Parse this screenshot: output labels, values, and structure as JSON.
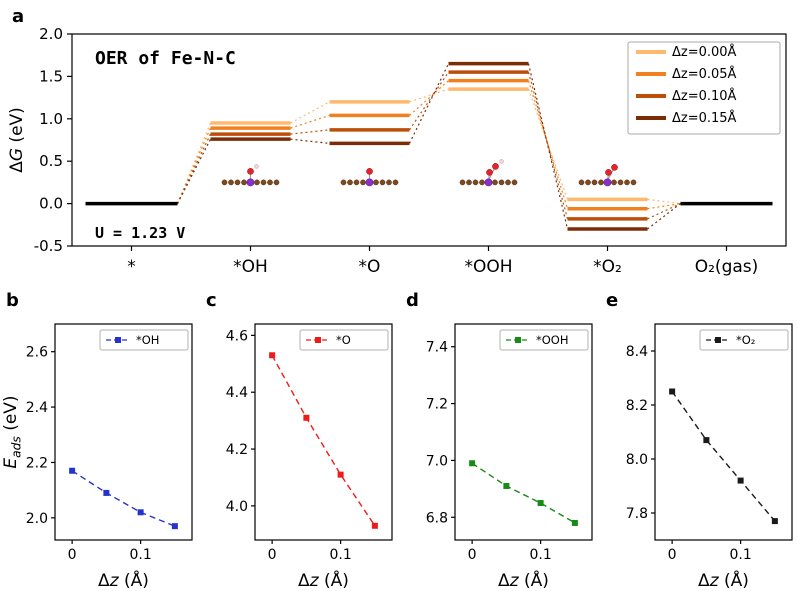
{
  "chart_data": [
    {
      "type": "step-diagram",
      "panel_label": "a",
      "title": "OER of Fe-N-C",
      "annotation": "U = 1.23 V",
      "ylabel_parts": [
        {
          "text": "Δ"
        },
        {
          "text": "G",
          "italic": true
        },
        {
          "text": " (eV)"
        }
      ],
      "ylim": [
        -0.5,
        2.0
      ],
      "yticks": [
        -0.5,
        0.0,
        0.5,
        1.0,
        1.5,
        2.0
      ],
      "ytick_labels": [
        "-0.5",
        "0.0",
        "0.5",
        "1.0",
        "1.5",
        "2.0"
      ],
      "categories": [
        "*",
        "*OH",
        "*O",
        "*OOH",
        "*O₂",
        "O₂(gas)"
      ],
      "endpoint_color": "#000000",
      "legend_position": "top-right",
      "series": [
        {
          "name": "Δz=0.00Å",
          "color": "#FDB96E",
          "values": [
            0.0,
            0.95,
            1.2,
            1.35,
            0.05,
            0.0
          ]
        },
        {
          "name": "Δz=0.05Å",
          "color": "#F08120",
          "values": [
            0.0,
            0.89,
            1.04,
            1.45,
            -0.06,
            0.0
          ]
        },
        {
          "name": "Δz=0.10Å",
          "color": "#BC4E0B",
          "values": [
            0.0,
            0.82,
            0.87,
            1.55,
            -0.18,
            0.0
          ]
        },
        {
          "name": "Δz=0.15Å",
          "color": "#7C2D06",
          "values": [
            0.0,
            0.76,
            0.71,
            1.65,
            -0.3,
            0.0
          ]
        }
      ],
      "insets": [
        {
          "at": 1,
          "type": "OH"
        },
        {
          "at": 2,
          "type": "O"
        },
        {
          "at": 3,
          "type": "OOH"
        },
        {
          "at": 4,
          "type": "O2"
        }
      ],
      "inset_colors": {
        "carbon": "#7B4A21",
        "metal": "#8B2FC9",
        "oxygen": "#E3242B",
        "hydrogen": "#F2D6DB"
      }
    },
    {
      "type": "line",
      "panel_label": "b",
      "legend": "*OH",
      "color": "#2533CC",
      "line_style": "dashed",
      "marker": "square",
      "x": [
        0,
        0.05,
        0.1,
        0.15
      ],
      "y": [
        2.17,
        2.09,
        2.02,
        1.97
      ],
      "xlim": [
        -0.025,
        0.175
      ],
      "ylim": [
        1.92,
        2.7
      ],
      "xticks": [
        0,
        0.1
      ],
      "xtick_labels": [
        "0",
        "0.1"
      ],
      "yticks": [
        2.0,
        2.2,
        2.4,
        2.6
      ],
      "ytick_labels": [
        "2.0",
        "2.2",
        "2.4",
        "2.6"
      ],
      "xlabel_parts": [
        {
          "text": "Δ"
        },
        {
          "text": "z",
          "italic": true
        },
        {
          "text": " (Å)"
        }
      ],
      "ylabel_parts": [
        {
          "text": "E",
          "italic": true
        },
        {
          "text": "ads",
          "sub": true
        },
        {
          "text": " (eV)"
        }
      ]
    },
    {
      "type": "line",
      "panel_label": "c",
      "legend": "*O",
      "color": "#EE1B1B",
      "line_style": "dashed",
      "marker": "square",
      "x": [
        0,
        0.05,
        0.1,
        0.15
      ],
      "y": [
        4.53,
        4.31,
        4.11,
        3.93
      ],
      "xlim": [
        -0.025,
        0.175
      ],
      "ylim": [
        3.88,
        4.64
      ],
      "xticks": [
        0,
        0.1
      ],
      "xtick_labels": [
        "0",
        "0.1"
      ],
      "yticks": [
        4.0,
        4.2,
        4.4,
        4.6
      ],
      "ytick_labels": [
        "4.0",
        "4.2",
        "4.4",
        "4.6"
      ],
      "xlabel_parts": [
        {
          "text": "Δ"
        },
        {
          "text": "z",
          "italic": true
        },
        {
          "text": " (Å)"
        }
      ]
    },
    {
      "type": "line",
      "panel_label": "d",
      "legend": "*OOH",
      "color": "#178A17",
      "line_style": "dashed",
      "marker": "square",
      "x": [
        0,
        0.05,
        0.1,
        0.15
      ],
      "y": [
        6.99,
        6.91,
        6.85,
        6.78
      ],
      "xlim": [
        -0.025,
        0.175
      ],
      "ylim": [
        6.72,
        7.48
      ],
      "xticks": [
        0,
        0.1
      ],
      "xtick_labels": [
        "0",
        "0.1"
      ],
      "yticks": [
        6.8,
        7.0,
        7.2,
        7.4
      ],
      "ytick_labels": [
        "6.8",
        "7.0",
        "7.2",
        "7.4"
      ],
      "xlabel_parts": [
        {
          "text": "Δ"
        },
        {
          "text": "z",
          "italic": true
        },
        {
          "text": " (Å)"
        }
      ]
    },
    {
      "type": "line",
      "panel_label": "e",
      "legend": "*O₂",
      "color": "#1A1A1A",
      "line_style": "dashed",
      "marker": "square",
      "x": [
        0,
        0.05,
        0.1,
        0.15
      ],
      "y": [
        8.25,
        8.07,
        7.92,
        7.77
      ],
      "xlim": [
        -0.025,
        0.175
      ],
      "ylim": [
        7.7,
        8.5
      ],
      "xticks": [
        0,
        0.1
      ],
      "xtick_labels": [
        "0",
        "0.1"
      ],
      "yticks": [
        7.8,
        8.0,
        8.2,
        8.4
      ],
      "ytick_labels": [
        "7.8",
        "8.0",
        "8.2",
        "8.4"
      ],
      "xlabel_parts": [
        {
          "text": "Δ"
        },
        {
          "text": "z",
          "italic": true
        },
        {
          "text": " (Å)"
        }
      ]
    }
  ]
}
